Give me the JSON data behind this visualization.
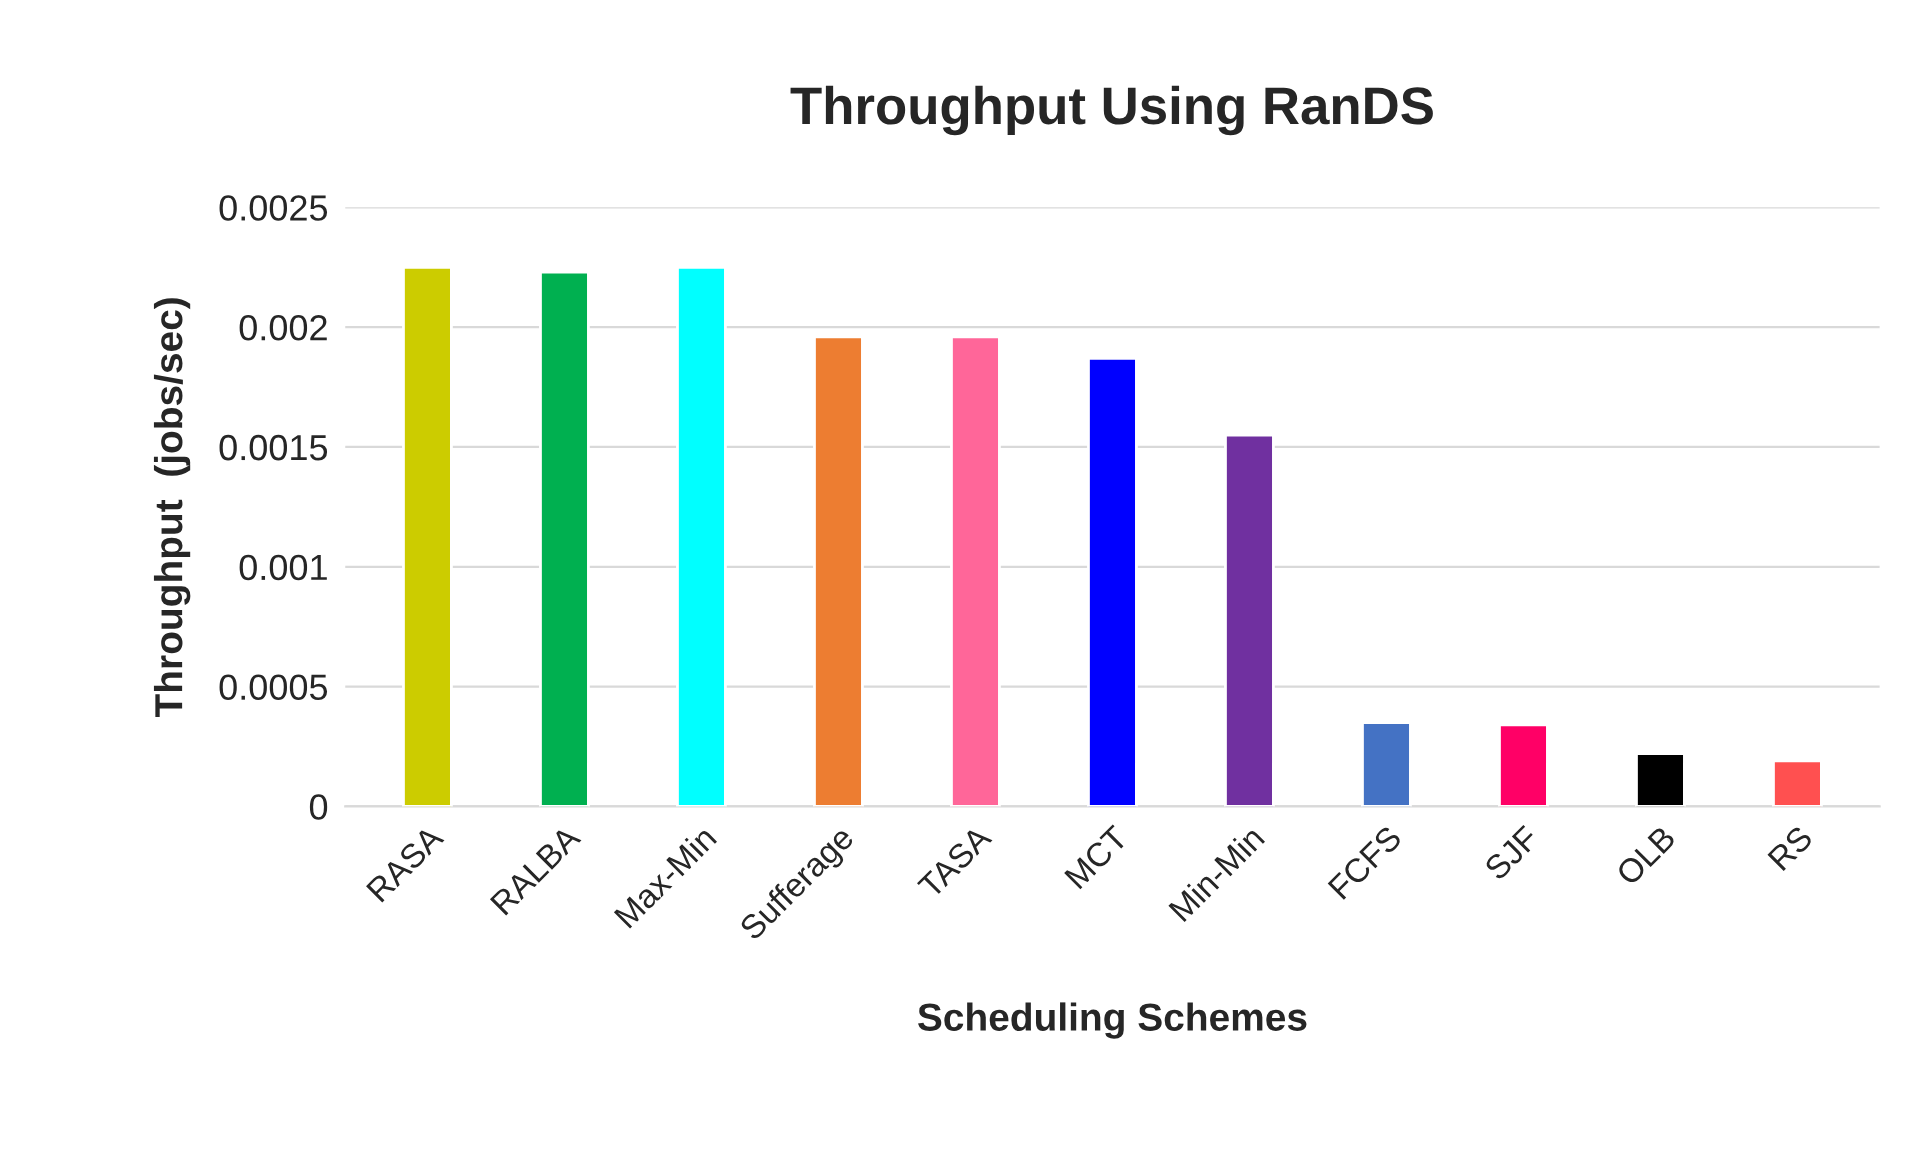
{
  "chart_data": {
    "type": "bar",
    "title": "Throughput Using RanDS",
    "xlabel": "Scheduling Schemes",
    "ylabel": "Throughput  (jobs/sec)",
    "categories": [
      "RASA",
      "RALBA",
      "Max-Min",
      "Sufferage",
      "TASA",
      "MCT",
      "Min-Min",
      "FCFS",
      "SJF",
      "OLB",
      "RS"
    ],
    "values": [
      0.00225,
      0.00223,
      0.00225,
      0.00196,
      0.00196,
      0.00187,
      0.00155,
      0.00035,
      0.00034,
      0.00022,
      0.00019
    ],
    "colors": [
      "#cccc00",
      "#00b050",
      "#00ffff",
      "#ed7d31",
      "#ff6699",
      "#0000ff",
      "#7030a0",
      "#4472c4",
      "#ff0066",
      "#000000",
      "#ff5050"
    ],
    "ylim": [
      0,
      0.0025
    ],
    "yticks": [
      {
        "value": 0,
        "label": "0"
      },
      {
        "value": 0.0005,
        "label": "0.0005"
      },
      {
        "value": 0.001,
        "label": "0.001"
      },
      {
        "value": 0.0015,
        "label": "0.0015"
      },
      {
        "value": 0.002,
        "label": "0.002"
      },
      {
        "value": 0.0025,
        "label": "0.0025"
      }
    ],
    "grid": "y",
    "legend": false
  }
}
